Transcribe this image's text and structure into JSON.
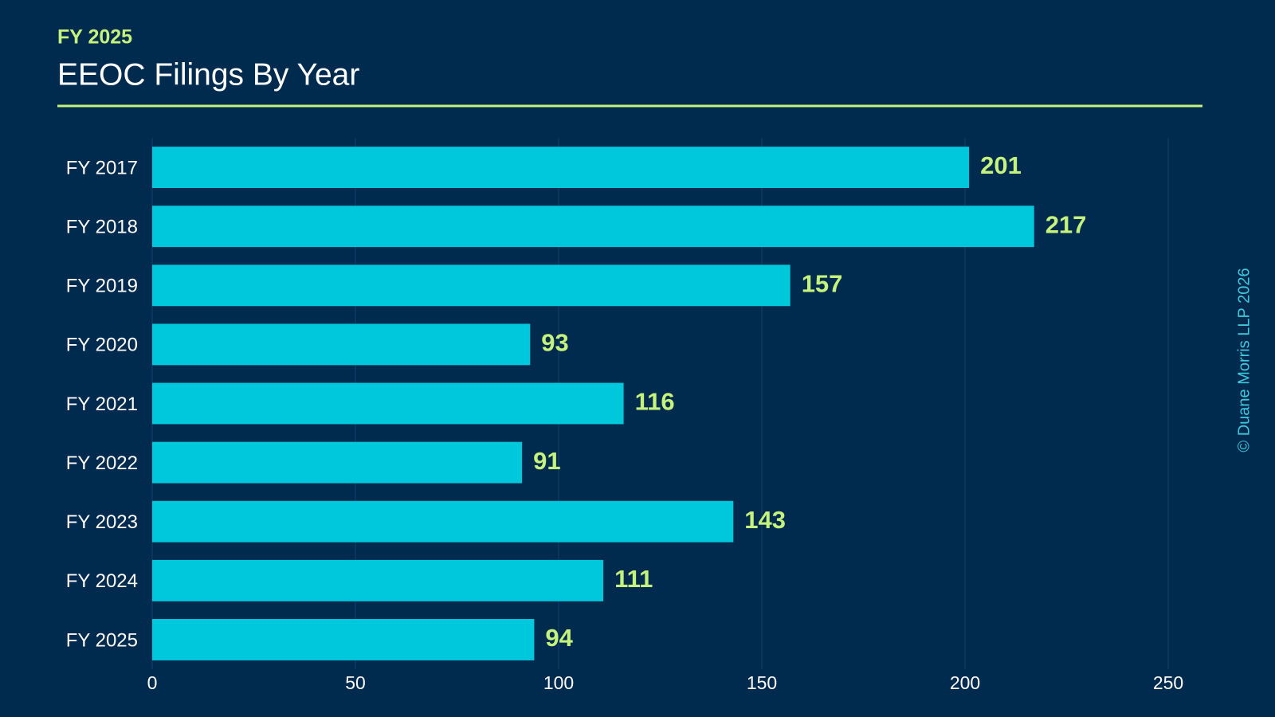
{
  "chart_data": {
    "type": "bar",
    "orientation": "horizontal",
    "subtitle": "FY 2025",
    "title": "EEOC Filings By Year",
    "annotation": "© Duane Morris LLP 2026",
    "categories": [
      "FY 2017",
      "FY 2018",
      "FY 2019",
      "FY 2020",
      "FY 2021",
      "FY 2022",
      "FY 2023",
      "FY 2024",
      "FY 2025"
    ],
    "values": [
      201,
      217,
      157,
      93,
      116,
      91,
      143,
      111,
      94
    ],
    "color": "#00c8dc",
    "xlim": [
      0,
      260
    ],
    "xticks": [
      0,
      50,
      100,
      150,
      200,
      250
    ],
    "grid": true
  }
}
